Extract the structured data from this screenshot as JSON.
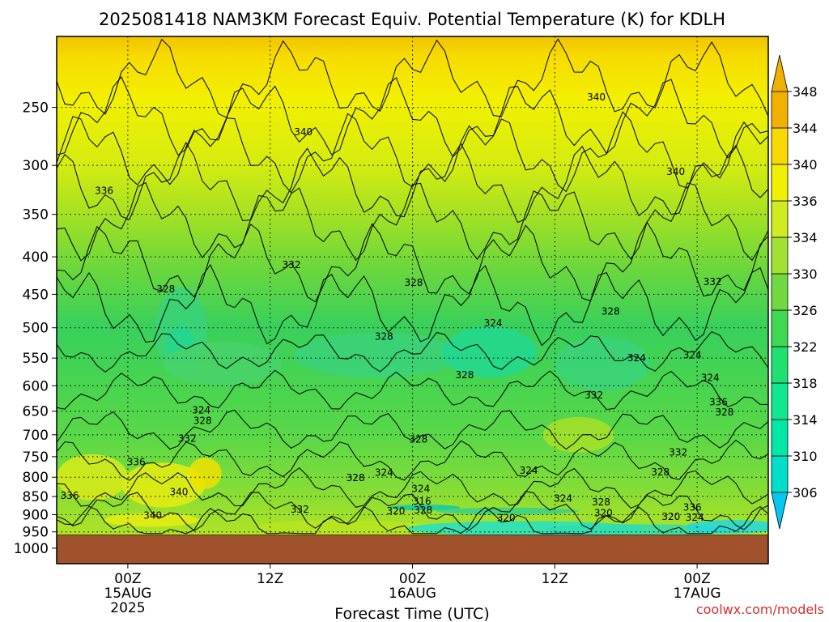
{
  "chart_data": {
    "type": "heatmap",
    "title": "2025081418 NAM3KM Forecast Equiv. Potential Temperature (K) for KDLH",
    "xlabel": "Forecast Time (UTC)",
    "ylabel": "",
    "credit": "coolwx.com/models",
    "y_axis": {
      "quantity": "pressure (hPa)",
      "scale": "log",
      "reversed": true,
      "ticks": [
        250,
        300,
        350,
        400,
        450,
        500,
        550,
        600,
        650,
        700,
        750,
        800,
        850,
        900,
        950,
        1000
      ],
      "range": [
        1050,
        200
      ]
    },
    "x_axis": {
      "quantity": "forecast time (hours since 2025-08-14 18Z)",
      "range": [
        0,
        60
      ],
      "ticks": [
        {
          "hour": 6,
          "lines": [
            "00Z",
            "15AUG",
            "2025"
          ]
        },
        {
          "hour": 18,
          "lines": [
            "12Z"
          ]
        },
        {
          "hour": 30,
          "lines": [
            "00Z",
            "16AUG"
          ]
        },
        {
          "hour": 42,
          "lines": [
            "12Z"
          ]
        },
        {
          "hour": 54,
          "lines": [
            "00Z",
            "17AUG"
          ]
        }
      ]
    },
    "colorbar": {
      "levels": [
        306,
        310,
        314,
        318,
        322,
        326,
        330,
        334,
        336,
        340,
        344,
        348
      ],
      "colors": [
        "#00c8f0",
        "#00e0c8",
        "#00e8a8",
        "#10e890",
        "#20e070",
        "#40d850",
        "#70d840",
        "#a0e030",
        "#d0ec20",
        "#f0f000",
        "#f8d800",
        "#f0b000"
      ],
      "extend": "both"
    },
    "below_ground_color": "#a0522d",
    "below_ground_from": 960,
    "contour_labels": [
      {
        "value": "340",
        "hour": 20.8,
        "p": 270
      },
      {
        "value": "340",
        "hour": 45.5,
        "p": 242
      },
      {
        "value": "340",
        "hour": 52.2,
        "p": 306
      },
      {
        "value": "336",
        "hour": 4.0,
        "p": 325
      },
      {
        "value": "332",
        "hour": 19.8,
        "p": 410
      },
      {
        "value": "332",
        "hour": 55.3,
        "p": 433
      },
      {
        "value": "328",
        "hour": 9.2,
        "p": 443
      },
      {
        "value": "328",
        "hour": 30.1,
        "p": 434
      },
      {
        "value": "328",
        "hour": 46.7,
        "p": 475
      },
      {
        "value": "328",
        "hour": 27.6,
        "p": 514
      },
      {
        "value": "328",
        "hour": 34.4,
        "p": 580
      },
      {
        "value": "328",
        "hour": 30.5,
        "p": 710
      },
      {
        "value": "328",
        "hour": 12.3,
        "p": 670
      },
      {
        "value": "328",
        "hour": 50.9,
        "p": 787
      },
      {
        "value": "328",
        "hour": 45.9,
        "p": 865
      },
      {
        "value": "328",
        "hour": 30.9,
        "p": 888
      },
      {
        "value": "328",
        "hour": 25.2,
        "p": 802
      },
      {
        "value": "328",
        "hour": 56.3,
        "p": 652
      },
      {
        "value": "324",
        "hour": 36.8,
        "p": 493
      },
      {
        "value": "324",
        "hour": 48.9,
        "p": 550
      },
      {
        "value": "324",
        "hour": 53.6,
        "p": 545
      },
      {
        "value": "324",
        "hour": 55.1,
        "p": 585
      },
      {
        "value": "324",
        "hour": 12.2,
        "p": 648
      },
      {
        "value": "324",
        "hour": 27.6,
        "p": 788
      },
      {
        "value": "324",
        "hour": 30.7,
        "p": 830
      },
      {
        "value": "324",
        "hour": 39.8,
        "p": 783
      },
      {
        "value": "324",
        "hour": 42.7,
        "p": 855
      },
      {
        "value": "324",
        "hour": 53.8,
        "p": 908
      },
      {
        "value": "332",
        "hour": 45.3,
        "p": 618
      },
      {
        "value": "332",
        "hour": 11.0,
        "p": 708
      },
      {
        "value": "332",
        "hour": 52.4,
        "p": 740
      },
      {
        "value": "332",
        "hour": 20.5,
        "p": 885
      },
      {
        "value": "336",
        "hour": 6.7,
        "p": 763
      },
      {
        "value": "336",
        "hour": 55.8,
        "p": 632
      },
      {
        "value": "336",
        "hour": 53.6,
        "p": 880
      },
      {
        "value": "336",
        "hour": 1.1,
        "p": 848
      },
      {
        "value": "340",
        "hour": 10.3,
        "p": 838
      },
      {
        "value": "340",
        "hour": 8.1,
        "p": 902
      },
      {
        "value": "316",
        "hour": 30.8,
        "p": 863
      },
      {
        "value": "320",
        "hour": 28.6,
        "p": 890
      },
      {
        "value": "320",
        "hour": 37.9,
        "p": 909
      },
      {
        "value": "320",
        "hour": 46.1,
        "p": 896
      },
      {
        "value": "320",
        "hour": 51.8,
        "p": 906
      }
    ]
  }
}
